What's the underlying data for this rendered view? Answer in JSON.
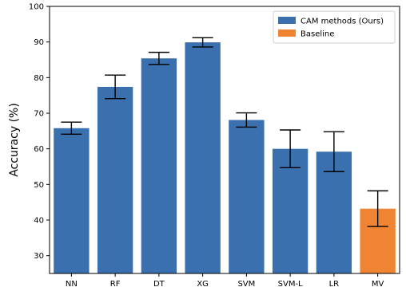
{
  "chart_data": {
    "type": "bar",
    "title": "",
    "xlabel": "",
    "ylabel": "Accuracy (%)",
    "ylim": [
      25,
      100
    ],
    "yticks": [
      30,
      40,
      50,
      60,
      70,
      80,
      90,
      100
    ],
    "grid": false,
    "legend_position": "top-right",
    "categories": [
      "NN",
      "RF",
      "DT",
      "XG",
      "SVM",
      "SVM-L",
      "LR",
      "MV"
    ],
    "values": [
      65.8,
      77.4,
      85.4,
      89.9,
      68.1,
      60.0,
      59.2,
      43.2
    ],
    "errors": [
      1.7,
      3.3,
      1.7,
      1.3,
      2.0,
      5.3,
      5.6,
      5.0
    ],
    "groups": [
      "CAM methods (Ours)",
      "CAM methods (Ours)",
      "CAM methods (Ours)",
      "CAM methods (Ours)",
      "CAM methods (Ours)",
      "CAM methods (Ours)",
      "CAM methods (Ours)",
      "Baseline"
    ],
    "legend": [
      {
        "name": "CAM methods (Ours)",
        "color": "#3a70ae"
      },
      {
        "name": "Baseline",
        "color": "#ef8533"
      }
    ]
  }
}
